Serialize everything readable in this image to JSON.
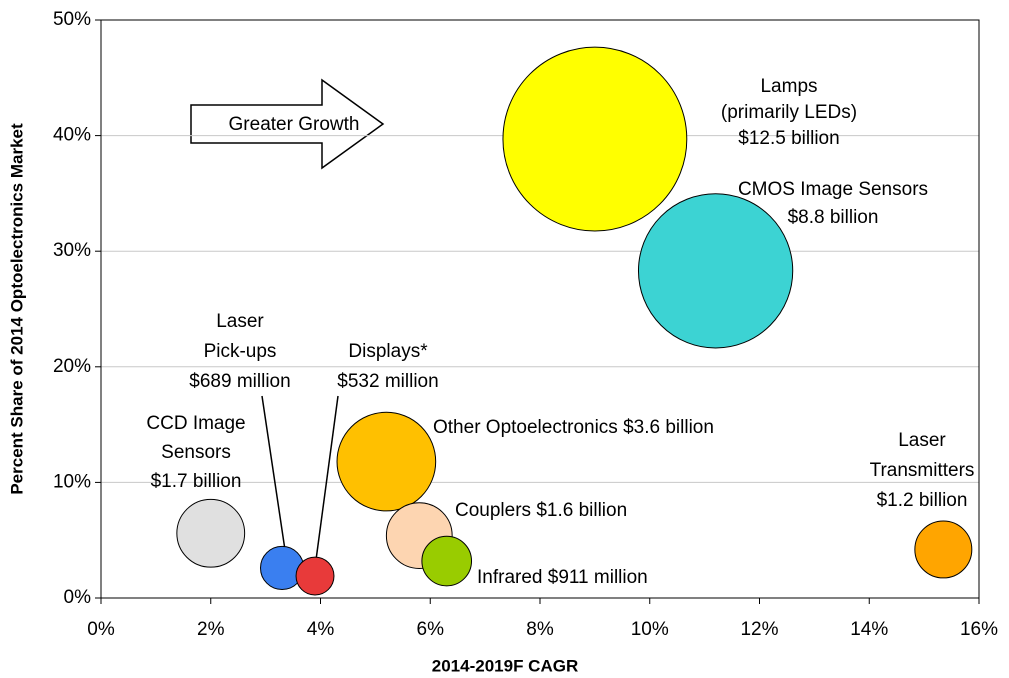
{
  "chart_data": {
    "type": "bubble",
    "xlabel": "2014-2019F CAGR",
    "ylabel": "Percent Share of 2014 Optoelectronics Market",
    "xlim": [
      0,
      16
    ],
    "xticks": [
      {
        "value": 0,
        "label": "0%"
      },
      {
        "value": 2,
        "label": "2%"
      },
      {
        "value": 4,
        "label": "4%"
      },
      {
        "value": 6,
        "label": "6%"
      },
      {
        "value": 8,
        "label": "8%"
      },
      {
        "value": 10,
        "label": "10%"
      },
      {
        "value": 12,
        "label": "12%"
      },
      {
        "value": 14,
        "label": "14%"
      },
      {
        "value": 16,
        "label": "16%"
      }
    ],
    "ylim": [
      0,
      50
    ],
    "yticks": [
      {
        "value": 0,
        "label": "0%"
      },
      {
        "value": 10,
        "label": "10%"
      },
      {
        "value": 20,
        "label": "20%"
      },
      {
        "value": 30,
        "label": "30%"
      },
      {
        "value": 40,
        "label": "40%"
      },
      {
        "value": 50,
        "label": "50%"
      }
    ],
    "grid": true,
    "annotation": "Greater Growth",
    "points": [
      {
        "label": [
          "Lamps",
          "(primarily LEDs)",
          "$12.5 billion"
        ],
        "x": 9.0,
        "y": 39.7,
        "size": 12.5,
        "color": "#ffff00"
      },
      {
        "label": [
          "CMOS Image Sensors",
          "$8.8  billion"
        ],
        "x": 11.2,
        "y": 28.3,
        "size": 8.8,
        "color": "#3cd3d3"
      },
      {
        "label": [
          "Other Optoelectronics $3.6 billion"
        ],
        "x": 5.2,
        "y": 11.8,
        "size": 3.6,
        "color": "#ffc000"
      },
      {
        "label": [
          "Couplers $1.6 billion"
        ],
        "x": 5.8,
        "y": 5.4,
        "size": 1.6,
        "color": "#fdd5b1"
      },
      {
        "label": [
          "Infrared $911 million"
        ],
        "x": 6.3,
        "y": 3.2,
        "size": 0.911,
        "color": "#99cc00"
      },
      {
        "label": [
          "CCD Image",
          "Sensors",
          "$1.7 billion"
        ],
        "x": 2.0,
        "y": 5.6,
        "size": 1.7,
        "color": "#e0e0e0"
      },
      {
        "label": [
          "Laser",
          "Pick-ups",
          "$689 million"
        ],
        "x": 3.3,
        "y": 2.6,
        "size": 0.689,
        "color": "#3a7ff0"
      },
      {
        "label": [
          "Displays*",
          "$532 million"
        ],
        "x": 3.9,
        "y": 1.9,
        "size": 0.532,
        "color": "#e83a3a"
      },
      {
        "label": [
          "Laser",
          "Transmitters",
          "$1.2 billion"
        ],
        "x": 15.35,
        "y": 4.2,
        "size": 1.2,
        "color": "#ffa500"
      }
    ]
  }
}
